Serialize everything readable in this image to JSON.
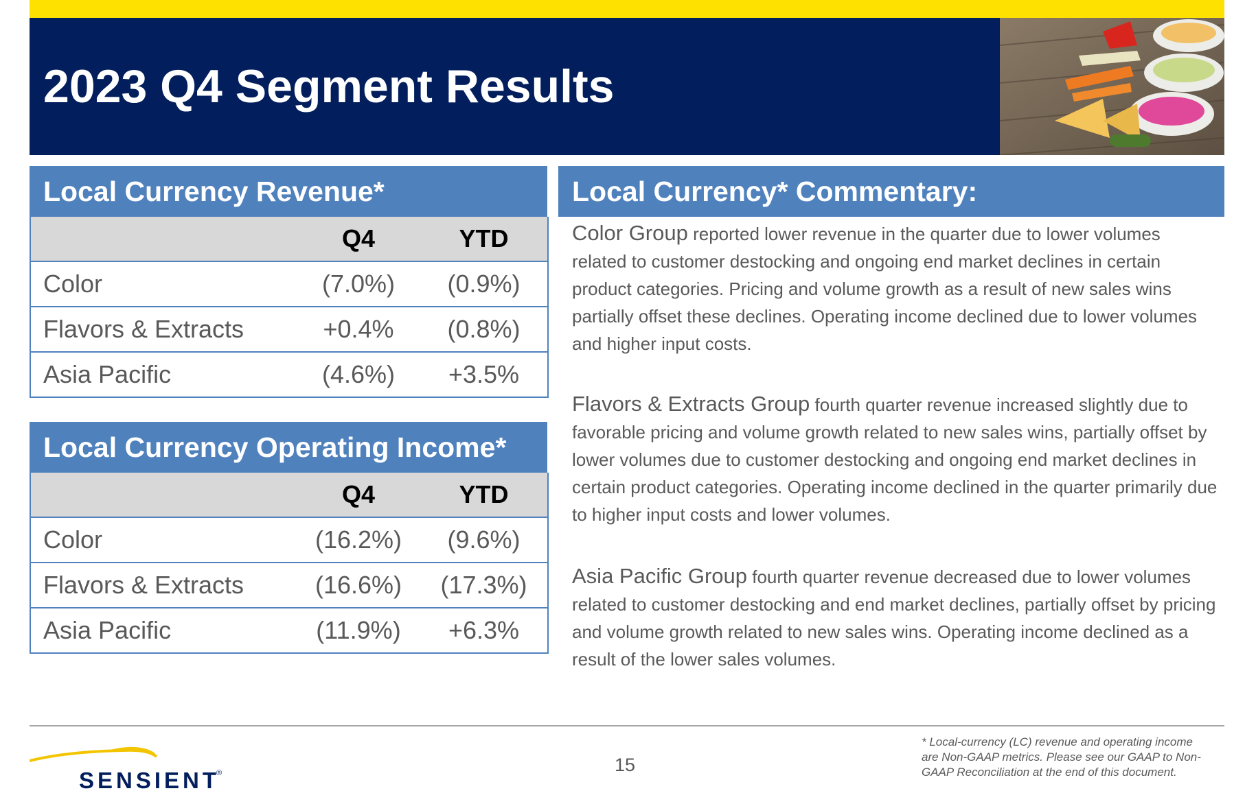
{
  "slide": {
    "title": "2023 Q4 Segment Results",
    "accent_colors": {
      "yellow_bar": "#FFE100",
      "navy_header": "#031E5C",
      "section_blue": "#4F81BD",
      "table_header_gray": "#D8D8D8",
      "body_gray": "#595959"
    },
    "photo_icon": "food-dips-photo"
  },
  "revenue_table": {
    "title": "Local Currency Revenue*",
    "headers": [
      "",
      "Q4",
      "YTD"
    ],
    "rows": [
      {
        "label": "Color",
        "q4": "(7.0%)",
        "ytd": "(0.9%)"
      },
      {
        "label": "Flavors & Extracts",
        "q4": "+0.4%",
        "ytd": "(0.8%)"
      },
      {
        "label": "Asia Pacific",
        "q4": "(4.6%)",
        "ytd": "+3.5%"
      }
    ]
  },
  "operating_income_table": {
    "title": "Local Currency Operating Income*",
    "headers": [
      "",
      "Q4",
      "YTD"
    ],
    "rows": [
      {
        "label": "Color",
        "q4": "(16.2%)",
        "ytd": "(9.6%)"
      },
      {
        "label": "Flavors & Extracts",
        "q4": "(16.6%)",
        "ytd": "(17.3%)"
      },
      {
        "label": "Asia Pacific",
        "q4": "(11.9%)",
        "ytd": "+6.3%"
      }
    ]
  },
  "commentary": {
    "title": "Local Currency* Commentary:",
    "paragraphs": [
      {
        "group": "Color Group",
        "text": " reported lower revenue in the quarter due to lower volumes related to customer destocking and ongoing end market declines in certain product categories.  Pricing and volume growth as a result of new sales wins partially offset these declines. Operating income declined due to lower volumes and higher input costs."
      },
      {
        "group": "Flavors & Extracts Group",
        "text": " fourth quarter revenue increased slightly due to favorable pricing and volume growth related to new sales wins, partially offset by lower volumes due to customer destocking and ongoing end market declines in certain product categories. Operating income declined in the quarter primarily due to higher input costs and lower volumes."
      },
      {
        "group": "Asia Pacific Group",
        "text": " fourth quarter revenue decreased due to lower volumes related to customer destocking and end market declines, partially offset by pricing and volume growth related to new sales wins.  Operating income declined as a result of the lower sales volumes."
      }
    ]
  },
  "footer": {
    "logo_text": "SENSIENT",
    "logo_mark": "®",
    "page_number": "15",
    "footnote": "* Local-currency (LC) revenue and operating income are Non-GAAP metrics. Please see our GAAP to Non-GAAP Reconciliation at the end of this document."
  }
}
